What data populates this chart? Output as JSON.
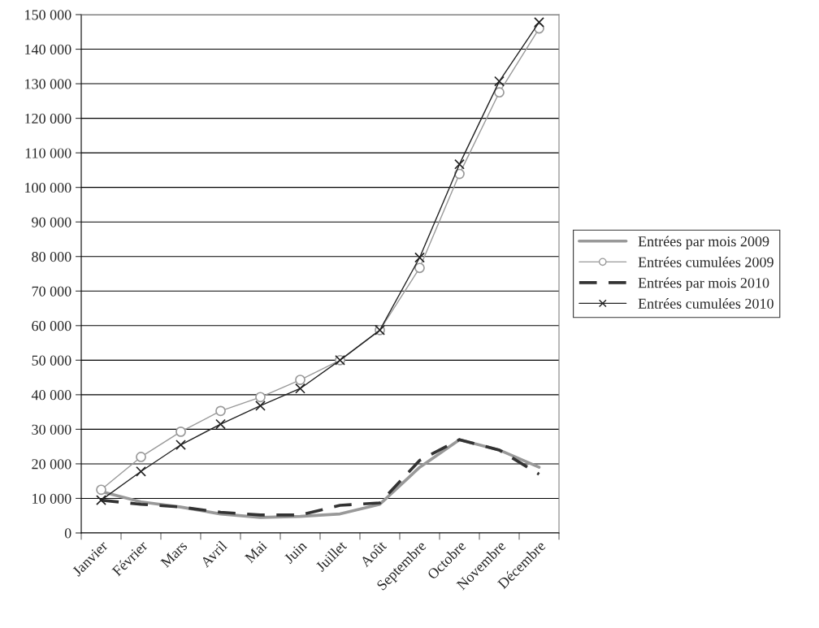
{
  "chart_data": {
    "type": "line",
    "categories": [
      "Janvier",
      "Février",
      "Mars",
      "Avril",
      "Mai",
      "Juin",
      "Juillet",
      "Août",
      "Septembre",
      "Octobre",
      "Novembre",
      "Décembre"
    ],
    "series": [
      {
        "name": "Entrées par mois 2009",
        "color": "#999999",
        "marker": "none",
        "line_style": "solid",
        "values": [
          12000,
          9000,
          7500,
          5500,
          4500,
          4800,
          5500,
          8300,
          19000,
          27000,
          24000,
          19000
        ]
      },
      {
        "name": "Entrées cumulées 2009",
        "color": "#999999",
        "marker": "circle",
        "line_style": "solid",
        "values": [
          12500,
          22000,
          29300,
          35300,
          39300,
          44300,
          50000,
          58700,
          76700,
          103900,
          127500,
          146000
        ]
      },
      {
        "name": "Entrées par mois 2010",
        "color": "#333333",
        "marker": "none",
        "line_style": "dashed",
        "values": [
          9500,
          8300,
          7500,
          6000,
          5200,
          5200,
          8000,
          8700,
          21000,
          27000,
          24000,
          17000
        ]
      },
      {
        "name": "Entrées cumulées 2010",
        "color": "#222222",
        "marker": "cross",
        "line_style": "solid",
        "values": [
          9500,
          17800,
          25500,
          31500,
          36800,
          41800,
          50000,
          58700,
          79700,
          106700,
          130700,
          147800
        ]
      }
    ],
    "ylim": [
      0,
      150000
    ],
    "yticks": [
      0,
      {
        "value": 10000,
        "label": "10 000"
      },
      {
        "value": 20000,
        "label": "20 000"
      },
      {
        "value": 30000,
        "label": "30 000"
      },
      {
        "value": 40000,
        "label": "40 000"
      },
      {
        "value": 50000,
        "label": "50 000"
      },
      {
        "value": 60000,
        "label": "60 000"
      },
      {
        "value": 70000,
        "label": "70 000"
      },
      {
        "value": 80000,
        "label": "80 000"
      },
      {
        "value": 90000,
        "label": "90 000"
      },
      {
        "value": 100000,
        "label": "100 000"
      },
      {
        "value": 110000,
        "label": "110 000"
      },
      {
        "value": 120000,
        "label": "120 000"
      },
      {
        "value": 130000,
        "label": "130 000"
      },
      {
        "value": 140000,
        "label": "140 000"
      },
      {
        "value": 150000,
        "label": "150 000"
      }
    ],
    "grid": "y",
    "legend": "right"
  }
}
